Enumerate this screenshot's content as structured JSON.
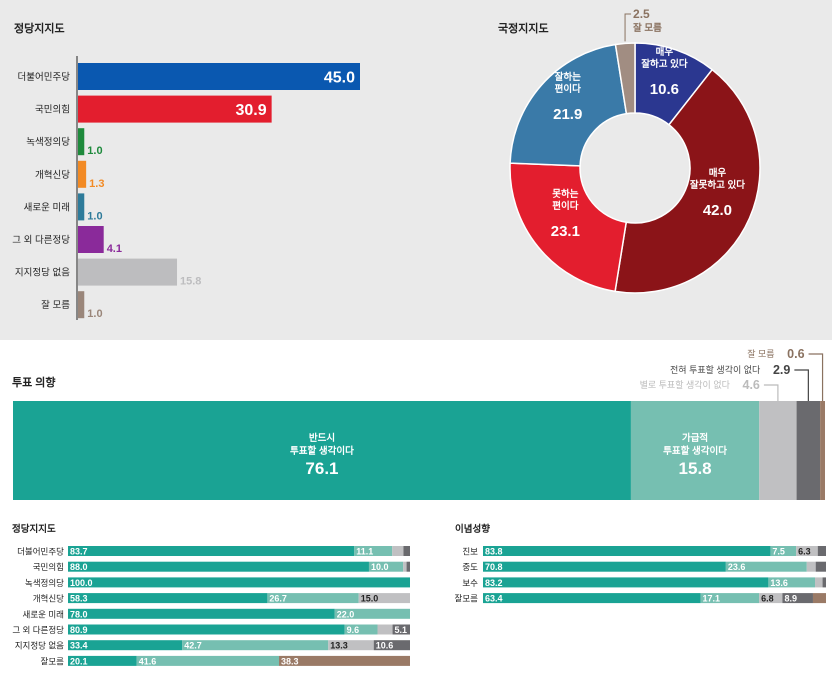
{
  "chart_data": [
    {
      "type": "bar",
      "title": "정당지지도",
      "orientation": "horizontal",
      "categories": [
        "더불어민주당",
        "국민의힘",
        "녹색정의당",
        "개혁신당",
        "새로운 미래",
        "그 외 다른정당",
        "지지정당 없음",
        "잘 모름"
      ],
      "values": [
        45.0,
        30.9,
        1.0,
        1.3,
        1.0,
        4.1,
        15.8,
        1.0
      ],
      "labels": [
        "45.0",
        "30.9",
        "1.0",
        "1.3",
        "1.0",
        "4.1",
        "15.8",
        "1.0"
      ],
      "colors": [
        "#0a58b0",
        "#e31e2e",
        "#1e8a3c",
        "#f28a24",
        "#2e7b9a",
        "#8a2a9a",
        "#bdbdbf",
        "#9a867a"
      ]
    },
    {
      "type": "pie",
      "title": "국정지지도",
      "donut": true,
      "slices": [
        {
          "label": [
            "매우",
            "잘하고 있다"
          ],
          "value": 10.6,
          "text": "10.6",
          "color": "#2b3790"
        },
        {
          "label": [
            "매우",
            "잘못하고 있다"
          ],
          "value": 42.0,
          "text": "42.0",
          "color": "#8b1418"
        },
        {
          "label": [
            "못하는",
            "편이다"
          ],
          "value": 23.1,
          "text": "23.1",
          "color": "#e31e2e"
        },
        {
          "label": [
            "잘하는",
            "편이다"
          ],
          "value": 21.9,
          "text": "21.9",
          "color": "#3a7aa8"
        },
        {
          "label": [
            "잘 모름"
          ],
          "value": 2.5,
          "text": "2.5",
          "color": "#a18d82"
        }
      ]
    },
    {
      "type": "bar",
      "stacked": true,
      "title": "투표 의향",
      "segments": [
        {
          "label": [
            "반드시",
            "투표할 생각이다"
          ],
          "value": 76.1,
          "text": "76.1",
          "color": "#1aa394"
        },
        {
          "label": [
            "가급적",
            "투표할 생각이다"
          ],
          "value": 15.8,
          "text": "15.8",
          "color": "#76bfb1"
        },
        {
          "label": [
            "별로 투표할 생각이 없다"
          ],
          "value": 4.6,
          "text": "4.6",
          "color": "#c0c0c2"
        },
        {
          "label": [
            "전혀 투표할 생각이 없다"
          ],
          "value": 2.9,
          "text": "2.9",
          "color": "#6a6a6e"
        },
        {
          "label": [
            "잘 모름"
          ],
          "value": 0.6,
          "text": "0.6",
          "color": "#9a7a66"
        }
      ]
    },
    {
      "type": "bar",
      "stacked": true,
      "title": "정당지지도",
      "categories": [
        "더불어민주당",
        "국민의힘",
        "녹색정의당",
        "개혁신당",
        "새로운 미래",
        "그 외 다른정당",
        "지지정당 없음",
        "잘모름"
      ],
      "series": [
        {
          "values": [
            83.7,
            88.0,
            100.0,
            58.3,
            78.0,
            80.9,
            33.4,
            20.1
          ],
          "texts": [
            "83.7",
            "88.0",
            "100.0",
            "58.3",
            "78.0",
            "80.9",
            "33.4",
            "20.1"
          ]
        },
        {
          "values": [
            11.1,
            10.0,
            0,
            26.7,
            22.0,
            9.6,
            42.7,
            41.6
          ],
          "texts": [
            "11.1",
            "10.0",
            "",
            "26.7",
            "22.0",
            "9.6",
            "42.7",
            "41.6"
          ]
        },
        {
          "values": [
            3.3,
            1.0,
            0,
            15.0,
            0,
            4.4,
            13.3,
            0
          ],
          "texts": [
            "",
            "",
            "",
            "15.0",
            "",
            "",
            "13.3",
            ""
          ]
        },
        {
          "values": [
            1.9,
            1.0,
            0,
            0,
            0,
            5.1,
            10.6,
            0
          ],
          "texts": [
            "",
            "",
            "",
            "",
            "",
            "5.1",
            "10.6",
            ""
          ]
        },
        {
          "values": [
            0,
            0,
            0,
            0,
            0,
            0,
            0,
            38.3
          ],
          "texts": [
            "",
            "",
            "",
            "",
            "",
            "",
            "",
            "38.3"
          ]
        }
      ]
    },
    {
      "type": "bar",
      "stacked": true,
      "title": "이념성향",
      "categories": [
        "진보",
        "중도",
        "보수",
        "잘모름"
      ],
      "series": [
        {
          "values": [
            83.8,
            70.8,
            83.2,
            63.4
          ],
          "texts": [
            "83.8",
            "70.8",
            "83.2",
            "63.4"
          ]
        },
        {
          "values": [
            7.5,
            23.6,
            13.6,
            17.1
          ],
          "texts": [
            "7.5",
            "23.6",
            "13.6",
            "17.1"
          ]
        },
        {
          "values": [
            6.3,
            2.6,
            2.2,
            6.8
          ],
          "texts": [
            "6.3",
            "",
            "",
            "6.8"
          ]
        },
        {
          "values": [
            2.4,
            3.0,
            1.0,
            8.9
          ],
          "texts": [
            "",
            "",
            "",
            "8.9"
          ]
        },
        {
          "values": [
            0,
            0,
            0,
            3.8
          ],
          "texts": [
            "",
            "",
            "",
            ""
          ]
        }
      ]
    }
  ],
  "segment_colors": [
    "#1aa394",
    "#76bfb1",
    "#c0c0c2",
    "#6a6a6e",
    "#9a7a66"
  ],
  "label_color": "#8a7260"
}
